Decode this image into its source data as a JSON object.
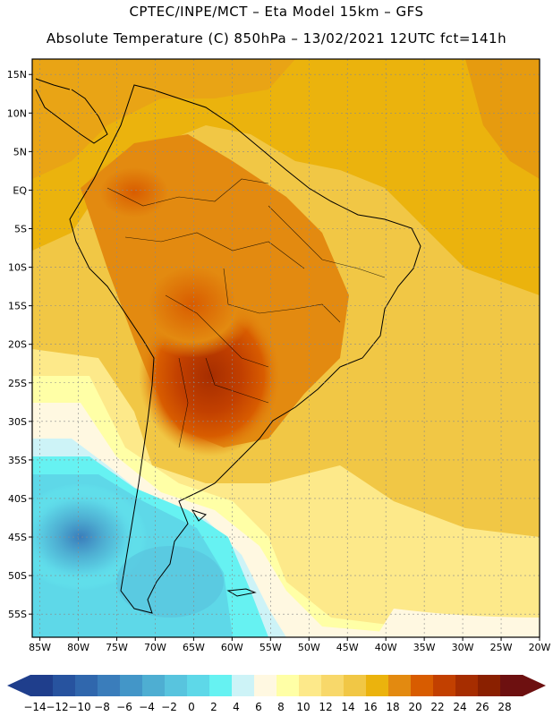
{
  "header": {
    "line1": "CPTEC/INPE/MCT –  Eta Model 15km – GFS",
    "line2": "Absolute Temperature (C) 850hPa – 13/02/2021 12UTC fct=141h"
  },
  "map": {
    "lat_labels": [
      "15N",
      "10N",
      "5N",
      "EQ",
      "5S",
      "10S",
      "15S",
      "20S",
      "25S",
      "30S",
      "35S",
      "40S",
      "45S",
      "50S",
      "55S"
    ],
    "lon_labels": [
      "85W",
      "80W",
      "75W",
      "70W",
      "65W",
      "60W",
      "55W",
      "50W",
      "45W",
      "40W",
      "35W",
      "30W",
      "25W",
      "20W"
    ],
    "lat_range": [
      17,
      -58
    ],
    "lon_range": [
      -86,
      -20
    ]
  },
  "colorbar": {
    "values": [
      "-14",
      "-12",
      "-10",
      "-8",
      "-6",
      "-4",
      "-2",
      "0",
      "2",
      "4",
      "6",
      "8",
      "10",
      "12",
      "14",
      "16",
      "18",
      "20",
      "22",
      "24",
      "26",
      "28"
    ],
    "colors": [
      "#1f3e8c",
      "#27539f",
      "#3067ad",
      "#3a7dbb",
      "#4396c8",
      "#4eaed2",
      "#58c4de",
      "#5ed8e8",
      "#66f2f2",
      "#cdf3f7",
      "#fff8e1",
      "#ffffa6",
      "#fde98a",
      "#f8d86a",
      "#f1c745",
      "#ebb30d",
      "#e38a10",
      "#d85c00",
      "#c24000",
      "#a62d00",
      "#8a2000",
      "#6d1010"
    ],
    "left_arrow_color": "#1f3e8c",
    "right_arrow_color": "#6d1010"
  }
}
